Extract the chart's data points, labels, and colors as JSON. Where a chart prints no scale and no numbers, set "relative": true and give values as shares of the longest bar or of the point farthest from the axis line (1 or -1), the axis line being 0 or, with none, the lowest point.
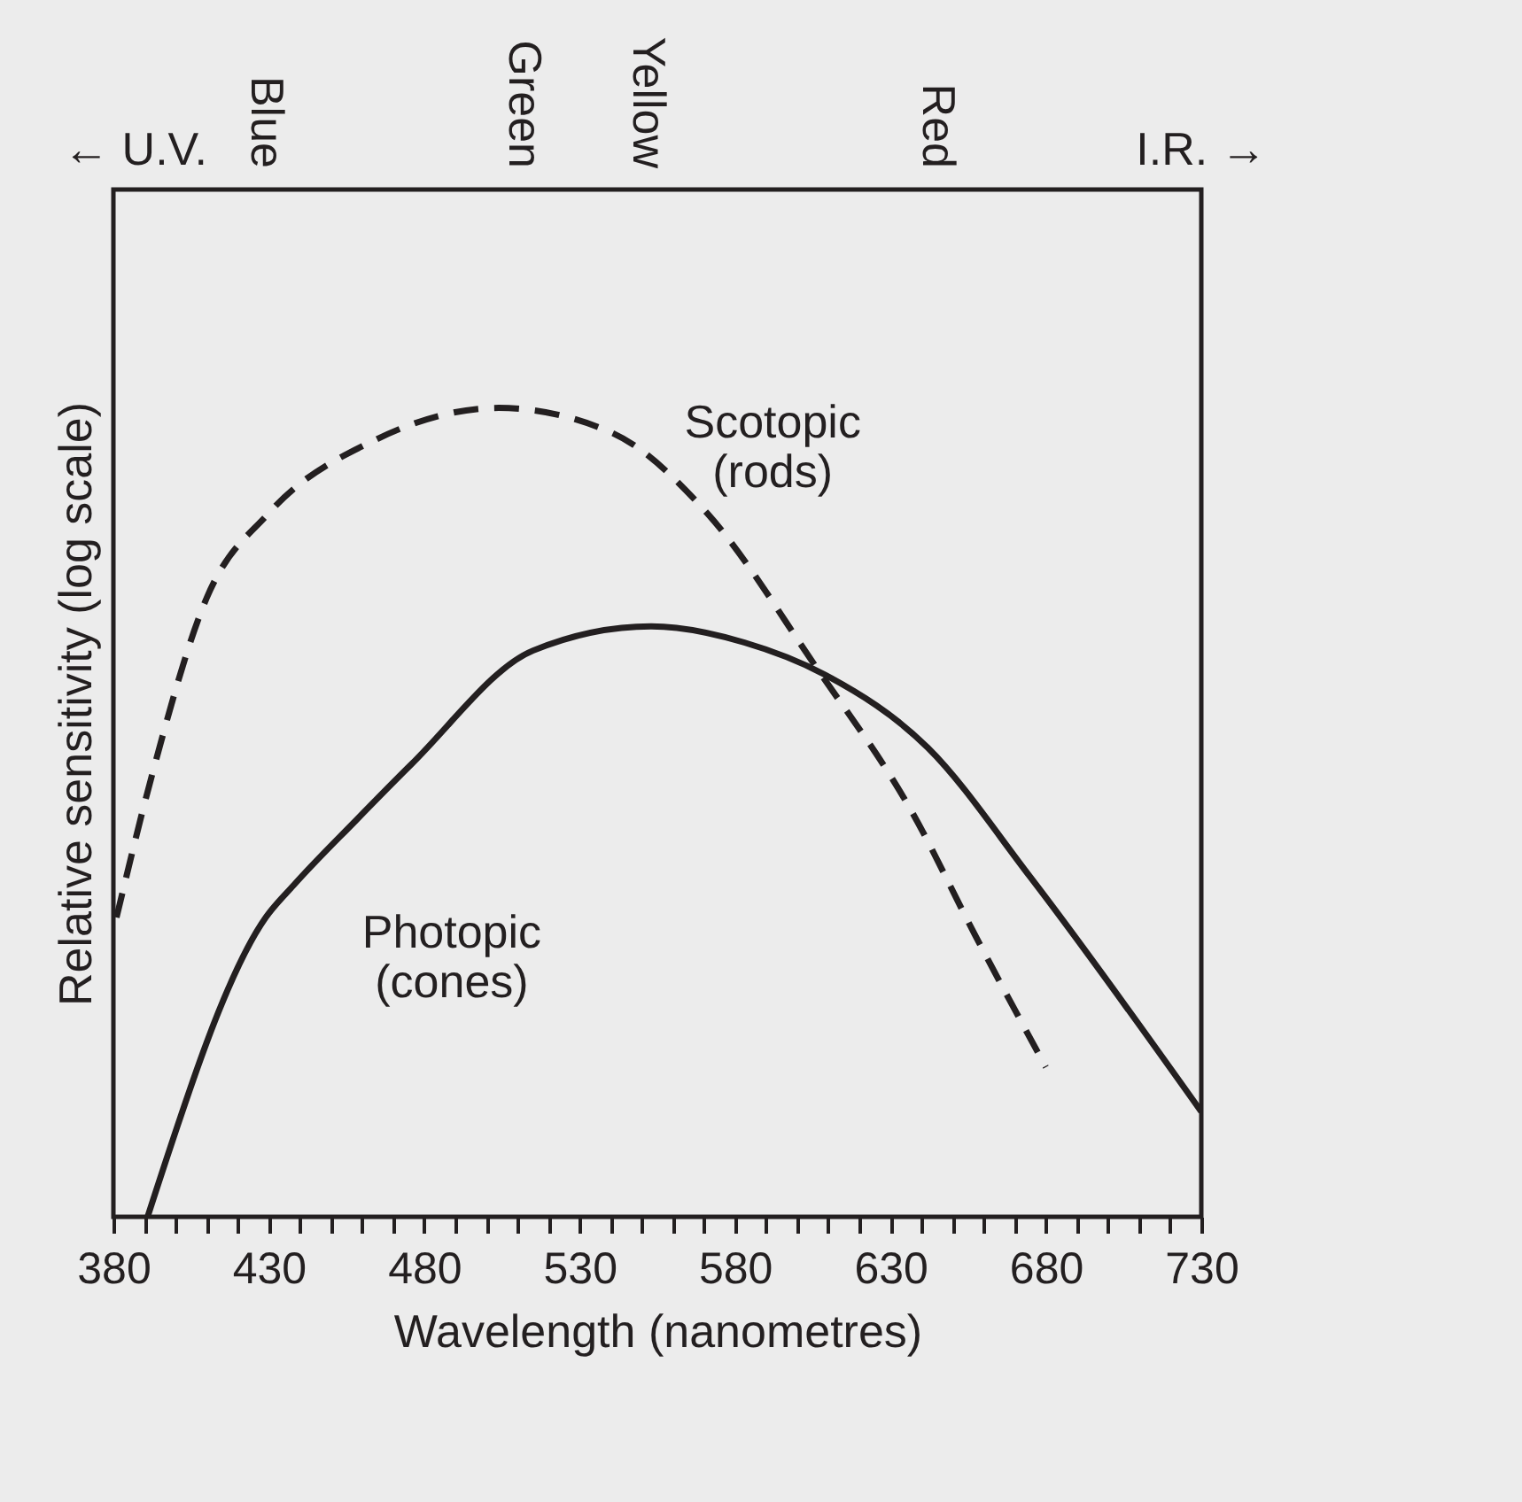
{
  "chart_data": {
    "type": "line",
    "relative": true,
    "xlabel": "Wavelength (nanometres)",
    "ylabel": "Relative sensitivity (log scale)",
    "xlim": [
      380,
      730
    ],
    "xticks": [
      380,
      {
        "value": 390,
        "label": null
      },
      {
        "value": 400,
        "label": null
      },
      {
        "value": 410,
        "label": null
      },
      {
        "value": 420,
        "label": null
      },
      430,
      {
        "value": 440,
        "label": null
      },
      {
        "value": 450,
        "label": null
      },
      {
        "value": 460,
        "label": null
      },
      {
        "value": 470,
        "label": null
      },
      480,
      {
        "value": 490,
        "label": null
      },
      {
        "value": 500,
        "label": null
      },
      {
        "value": 510,
        "label": null
      },
      {
        "value": 520,
        "label": null
      },
      530,
      {
        "value": 540,
        "label": null
      },
      {
        "value": 550,
        "label": null
      },
      {
        "value": 560,
        "label": null
      },
      {
        "value": 570,
        "label": null
      },
      580,
      {
        "value": 590,
        "label": null
      },
      {
        "value": 600,
        "label": null
      },
      {
        "value": 610,
        "label": null
      },
      {
        "value": 620,
        "label": null
      },
      630,
      {
        "value": 640,
        "label": null
      },
      {
        "value": 650,
        "label": null
      },
      {
        "value": 660,
        "label": null
      },
      {
        "value": 670,
        "label": null
      },
      680,
      {
        "value": 690,
        "label": null
      },
      {
        "value": 700,
        "label": null
      },
      {
        "value": 710,
        "label": null
      },
      {
        "value": 720,
        "label": null
      },
      730
    ],
    "series": [
      {
        "color": "#231f20",
        "line_style": "dashed",
        "x": [
          381,
          392,
          410,
          430,
          464,
          504,
          540,
          571,
          606,
          637,
          657,
          680
        ],
        "values": [
          0.37,
          0.54,
          0.765,
          0.87,
          0.96,
          1.0,
          0.97,
          0.87,
          0.68,
          0.5,
          0.35,
          0.185
        ]
      },
      {
        "color": "#231f20",
        "line_style": "solid",
        "x": [
          391,
          429,
          438,
          458,
          476,
          515,
          553,
          583,
          609,
          642,
          675,
          730
        ],
        "values": [
          0.0,
          0.37,
          0.41,
          0.49,
          0.56,
          0.7,
          0.73,
          0.71,
          0.67,
          0.58,
          0.42,
          0.13
        ]
      }
    ],
    "annotations": [
      "← U.V.",
      "Blue",
      "Green",
      "Yellow",
      "Red",
      "I.R. →",
      "Scotopic\n(rods)",
      "Photopic\n(cones)"
    ]
  }
}
